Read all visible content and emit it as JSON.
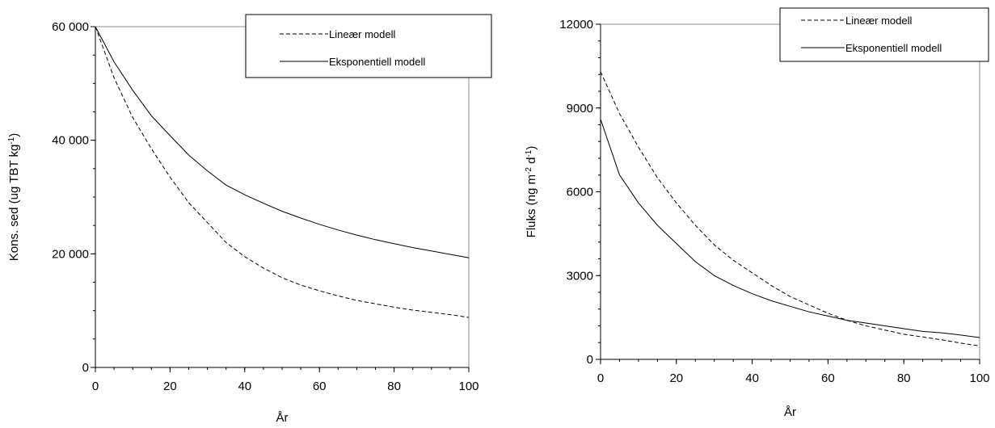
{
  "chart_data": [
    {
      "type": "line",
      "xlabel": "År",
      "ylabel": "Kons. sed (ug TBT kg-1)",
      "xlim": [
        0,
        100
      ],
      "ylim": [
        0,
        60000
      ],
      "x_ticks": [
        0,
        20,
        40,
        60,
        80,
        100
      ],
      "x_tick_labels": [
        "0",
        "20",
        "40",
        "60",
        "80",
        "100"
      ],
      "x_minor_ticks": true,
      "y_ticks": [
        0,
        20000,
        40000,
        60000
      ],
      "y_tick_labels": [
        "0",
        "20 000",
        "40 000",
        "60 000"
      ],
      "y_minor_step": 5000,
      "grid": false,
      "legend_position": "top-right",
      "x": [
        0,
        5,
        10,
        15,
        20,
        25,
        30,
        35,
        40,
        45,
        50,
        55,
        60,
        65,
        70,
        75,
        80,
        85,
        90,
        95,
        100
      ],
      "series": [
        {
          "name": "Lineær modell",
          "style": "dashed",
          "color": "#000000",
          "values": [
            60000,
            51000,
            44000,
            38500,
            33500,
            29000,
            25500,
            22000,
            19500,
            17500,
            15800,
            14500,
            13500,
            12600,
            11800,
            11200,
            10600,
            10100,
            9700,
            9300,
            8800
          ]
        },
        {
          "name": "Eksponentiell modell",
          "style": "solid",
          "color": "#000000",
          "values": [
            60000,
            53800,
            48800,
            44300,
            40800,
            37400,
            34600,
            32100,
            30400,
            28900,
            27500,
            26300,
            25200,
            24200,
            23300,
            22500,
            21800,
            21100,
            20500,
            19900,
            19300
          ]
        }
      ]
    },
    {
      "type": "line",
      "xlabel": "År",
      "ylabel": "Fluks (ng m-2 d-1)",
      "xlim": [
        0,
        100
      ],
      "ylim": [
        0,
        12000
      ],
      "x_ticks": [
        0,
        20,
        40,
        60,
        80,
        100
      ],
      "x_tick_labels": [
        "0",
        "20",
        "40",
        "60",
        "80",
        "100"
      ],
      "x_minor_ticks": true,
      "y_ticks": [
        0,
        3000,
        6000,
        9000,
        12000
      ],
      "y_tick_labels": [
        "0",
        "3000",
        "6000",
        "9000",
        "12000"
      ],
      "y_minor_step": 600,
      "grid": false,
      "legend_position": "top-right",
      "x": [
        0,
        5,
        10,
        15,
        20,
        25,
        30,
        35,
        40,
        45,
        50,
        55,
        60,
        65,
        70,
        75,
        80,
        85,
        90,
        95,
        100
      ],
      "series": [
        {
          "name": "Lineær modell",
          "style": "dashed",
          "color": "#000000",
          "values": [
            10300,
            8800,
            7600,
            6500,
            5600,
            4800,
            4100,
            3550,
            3100,
            2650,
            2250,
            1950,
            1650,
            1400,
            1200,
            1050,
            900,
            800,
            700,
            580,
            480
          ]
        },
        {
          "name": "Eksponentiell modell",
          "style": "solid",
          "color": "#000000",
          "values": [
            8600,
            6600,
            5600,
            4800,
            4150,
            3500,
            3000,
            2650,
            2350,
            2100,
            1900,
            1700,
            1550,
            1400,
            1300,
            1200,
            1100,
            1000,
            950,
            870,
            780
          ]
        }
      ]
    }
  ]
}
